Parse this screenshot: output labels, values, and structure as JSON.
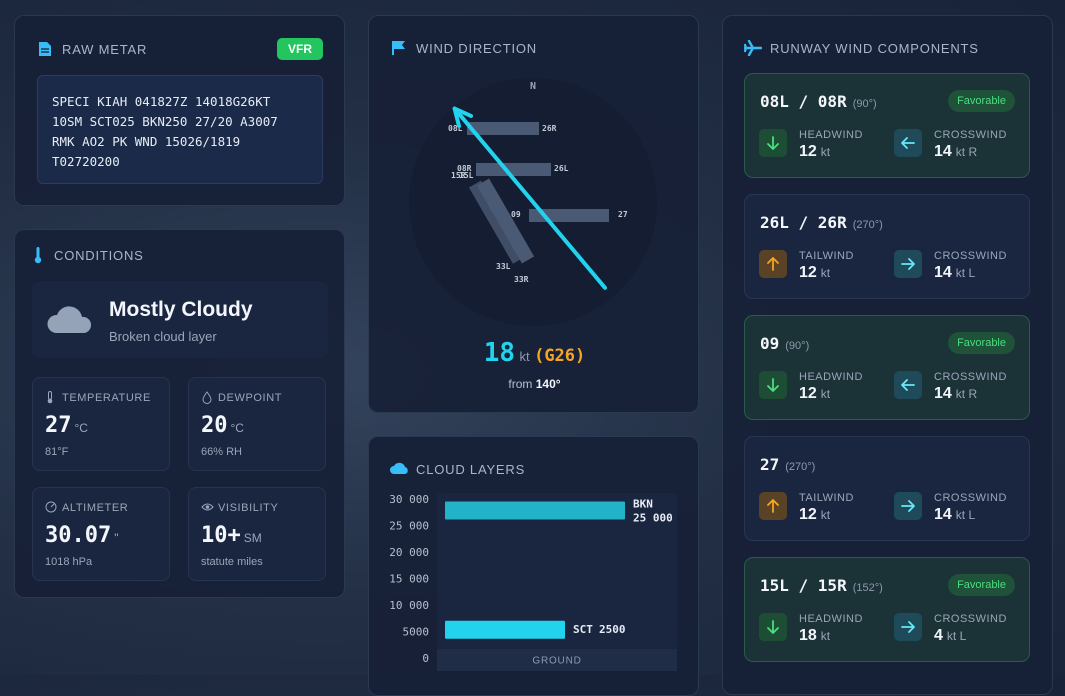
{
  "metar": {
    "title": "RAW METAR",
    "badge": "VFR",
    "lines": [
      "SPECI KIAH 041827Z 14018G26KT",
      "10SM SCT025 BKN250 27/20 A3007",
      "RMK AO2 PK WND 15026/1819",
      "T02720200"
    ]
  },
  "conditions": {
    "title": "CONDITIONS",
    "sky": "Mostly Cloudy",
    "sky_detail": "Broken cloud layer",
    "tiles": [
      {
        "label": "TEMPERATURE",
        "value": "27",
        "unit": "°C",
        "sub": "81°F"
      },
      {
        "label": "DEWPOINT",
        "value": "20",
        "unit": "°C",
        "sub": "66% RH"
      },
      {
        "label": "ALTIMETER",
        "value": "30.07",
        "unit": "\"",
        "sub": "1018 hPa"
      },
      {
        "label": "VISIBILITY",
        "value": "10+",
        "unit": "SM",
        "sub": "statute miles"
      }
    ]
  },
  "wind": {
    "title": "WIND DIRECTION",
    "north": "N",
    "runway_labels": [
      [
        "08L",
        "26R"
      ],
      [
        "08R",
        "26L"
      ],
      [
        "09",
        "27"
      ],
      [
        "15L",
        "33R"
      ],
      [
        "15R",
        "33L"
      ]
    ],
    "speed": "18",
    "speed_unit": "kt",
    "gust": "(G26)",
    "from": "from",
    "direction": {
      "value": 140,
      "label": "140°"
    }
  },
  "chart_data": {
    "type": "layers",
    "title": "CLOUD LAYERS",
    "xlabel": "GROUND",
    "categories": [
      "BKN",
      "SCT"
    ],
    "values": [
      25000,
      2500
    ],
    "value_labels": [
      "25 000",
      "2500"
    ],
    "colors": [
      "#22b3c8",
      "#22d3ee"
    ],
    "ylim": [
      0,
      30000
    ],
    "yticks": [
      {
        "value": 30000,
        "label": "30 000"
      },
      {
        "value": 25000,
        "label": "25 000"
      },
      {
        "value": 20000,
        "label": "20 000"
      },
      {
        "value": 15000,
        "label": "15 000"
      },
      {
        "value": 10000,
        "label": "10 000"
      },
      5000,
      0
    ]
  },
  "runways": {
    "title": "RUNWAY WIND COMPONENTS",
    "items": [
      {
        "name": "08L / 08R",
        "heading": "(90°)",
        "badge": "Favorable",
        "components": [
          {
            "label": "HEADWIND",
            "value": "12",
            "unit": "kt"
          },
          {
            "label": "CROSSWIND",
            "value": "14",
            "unit": "kt R"
          }
        ]
      },
      {
        "name": "26L / 26R",
        "heading": "(270°)",
        "components": [
          {
            "label": "TAILWIND",
            "value": "12",
            "unit": "kt"
          },
          {
            "label": "CROSSWIND",
            "value": "14",
            "unit": "kt L"
          }
        ]
      },
      {
        "name": "09",
        "heading": "(90°)",
        "badge": "Favorable",
        "components": [
          {
            "label": "HEADWIND",
            "value": "12",
            "unit": "kt"
          },
          {
            "label": "CROSSWIND",
            "value": "14",
            "unit": "kt R"
          }
        ]
      },
      {
        "name": "27",
        "heading": "(270°)",
        "components": [
          {
            "label": "TAILWIND",
            "value": "12",
            "unit": "kt"
          },
          {
            "label": "CROSSWIND",
            "value": "14",
            "unit": "kt L"
          }
        ]
      },
      {
        "name": "15L / 15R",
        "heading": "(152°)",
        "badge": "Favorable",
        "components": [
          {
            "label": "HEADWIND",
            "value": "18",
            "unit": "kt"
          },
          {
            "label": "CROSSWIND",
            "value": "4",
            "unit": "kt L"
          }
        ]
      }
    ]
  }
}
